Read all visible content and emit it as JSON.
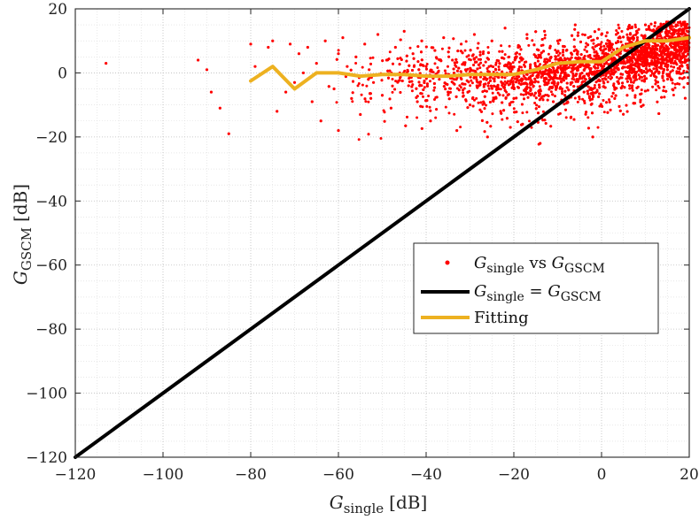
{
  "chart_data": {
    "type": "scatter",
    "xlim": [
      -120,
      20
    ],
    "ylim": [
      -120,
      20
    ],
    "xticks": [
      -120,
      -100,
      -80,
      -60,
      -40,
      -20,
      0,
      20
    ],
    "yticks": [
      -120,
      -100,
      -80,
      -60,
      -40,
      -20,
      0,
      20
    ],
    "xlabel": {
      "main": "G",
      "sub": "single",
      "unit": "[dB]"
    },
    "ylabel": {
      "main": "G",
      "sub": "GSCM",
      "unit": "[dB]"
    },
    "grid": true,
    "legend_position": "center-right",
    "legend": [
      {
        "key": "scatter",
        "label": "G_single vs G_GSCM",
        "parts": [
          "G",
          "single",
          " vs ",
          "G",
          "GSCM"
        ]
      },
      {
        "key": "identity",
        "label": "G_single = G_GSCM",
        "parts": [
          "G",
          "single",
          " = ",
          "G",
          "GSCM"
        ]
      },
      {
        "key": "fit",
        "label": "Fitting",
        "parts": [
          "Fitting"
        ]
      }
    ],
    "series": [
      {
        "name": "G_single vs G_GSCM",
        "kind": "scatter",
        "color": "#ff0000",
        "points": [
          [
            -113,
            3
          ],
          [
            -92,
            4
          ],
          [
            -90,
            1
          ],
          [
            -89,
            -6
          ],
          [
            -87,
            -11
          ],
          [
            -85,
            -19
          ],
          [
            -80,
            9
          ],
          [
            -79,
            2
          ],
          [
            -76,
            8
          ],
          [
            -75,
            10
          ],
          [
            -74,
            -12
          ],
          [
            -72,
            -6
          ],
          [
            -71,
            9
          ],
          [
            -70,
            -3
          ],
          [
            -69,
            6
          ],
          [
            -68,
            0
          ],
          [
            -67,
            8
          ],
          [
            -66,
            -9
          ],
          [
            -65,
            3
          ],
          [
            -64,
            -15
          ],
          [
            -63,
            10
          ],
          [
            -62,
            0
          ],
          [
            -61,
            -5
          ],
          [
            -60,
            6
          ],
          [
            -60,
            -18
          ],
          [
            -59,
            11
          ],
          [
            -58,
            2
          ],
          [
            -57,
            -8
          ],
          [
            -56,
            5
          ],
          [
            -55,
            -13
          ],
          [
            -54,
            9
          ],
          [
            -53,
            1
          ],
          [
            -52,
            -3
          ],
          [
            -51,
            12
          ],
          [
            -50,
            -7
          ],
          [
            -49,
            4
          ],
          [
            -48,
            -11
          ],
          [
            -47,
            8
          ],
          [
            -46,
            0
          ],
          [
            -45,
            13
          ],
          [
            -44,
            -4
          ],
          [
            -43,
            6
          ],
          [
            -42,
            -9
          ],
          [
            -41,
            10
          ],
          [
            -40,
            2
          ],
          [
            -39,
            -15
          ],
          [
            -38,
            7
          ],
          [
            -37,
            -2
          ],
          [
            -36,
            11
          ],
          [
            -35,
            -6
          ],
          [
            -34,
            4
          ],
          [
            -33,
            -18
          ],
          [
            -32,
            9
          ],
          [
            -31,
            1
          ],
          [
            -30,
            -10
          ],
          [
            -29,
            12
          ],
          [
            -28,
            -4
          ],
          [
            -27,
            6
          ],
          [
            -26,
            -20
          ],
          [
            -25,
            10
          ],
          [
            -24,
            -1
          ],
          [
            -23,
            -12
          ],
          [
            -22,
            14
          ],
          [
            -21,
            3
          ],
          [
            -20,
            -8
          ],
          [
            -19,
            8
          ],
          [
            -18,
            -16
          ],
          [
            -17,
            12
          ],
          [
            -16,
            -3
          ],
          [
            -15,
            5
          ],
          [
            -14,
            -22
          ],
          [
            -13,
            13
          ],
          [
            -12,
            0
          ],
          [
            -11,
            -9
          ],
          [
            -10,
            10
          ],
          [
            -9,
            -5
          ],
          [
            -8,
            7
          ],
          [
            -7,
            -14
          ],
          [
            -6,
            15
          ],
          [
            -5,
            2
          ],
          [
            -4,
            -6
          ],
          [
            -3,
            11
          ],
          [
            -2,
            -20
          ],
          [
            -1,
            6
          ],
          [
            0,
            12
          ],
          [
            1,
            -2
          ],
          [
            2,
            9
          ],
          [
            3,
            -8
          ],
          [
            4,
            14
          ],
          [
            5,
            3
          ],
          [
            6,
            11
          ],
          [
            7,
            -4
          ],
          [
            8,
            13
          ],
          [
            9,
            6
          ],
          [
            10,
            15
          ],
          [
            11,
            1
          ],
          [
            12,
            10
          ],
          [
            13,
            14
          ],
          [
            14,
            5
          ],
          [
            15,
            12
          ],
          [
            16,
            8
          ],
          [
            17,
            15
          ],
          [
            18,
            11
          ],
          [
            19,
            7
          ]
        ]
      },
      {
        "name": "G_single = G_GSCM",
        "kind": "line",
        "color": "#000000",
        "x": [
          -120,
          20
        ],
        "y": [
          -120,
          20
        ]
      },
      {
        "name": "Fitting",
        "kind": "line",
        "color": "#edb120",
        "x": [
          -80,
          -75,
          -70,
          -65,
          -60,
          -55,
          -50,
          -45,
          -40,
          -35,
          -30,
          -25,
          -20,
          -15,
          -10,
          -5,
          0,
          5,
          10,
          15,
          20
        ],
        "y": [
          -2.5,
          2,
          -5,
          0,
          0,
          -1,
          -0.5,
          -0.5,
          -1,
          -1,
          -0.5,
          -0.5,
          -0.5,
          1,
          3,
          3.5,
          3.5,
          8,
          10,
          10,
          11
        ]
      }
    ],
    "cloud": {
      "x_range": [
        -65,
        20
      ],
      "density_note": "dense scatter concentrated between x=-45 and 20"
    }
  }
}
